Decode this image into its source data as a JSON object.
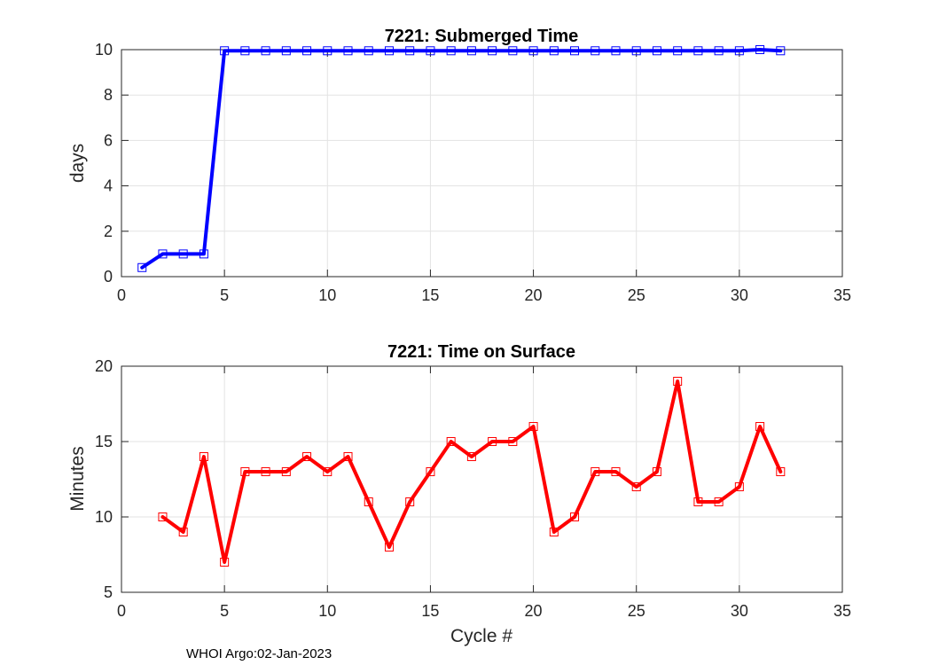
{
  "footer_text": "WHOI Argo:02-Jan-2023",
  "colors": {
    "series_top": "#0000ff",
    "series_bottom": "#ff0000",
    "marker_top": "#0000ff",
    "marker_bottom": "#ff0000"
  },
  "chart_data": [
    {
      "type": "line",
      "title": "7221: Submerged Time",
      "xlabel": "",
      "ylabel": "days",
      "xlim": [
        0,
        35
      ],
      "ylim": [
        0,
        10
      ],
      "xticks": [
        0,
        5,
        10,
        15,
        20,
        25,
        30,
        35
      ],
      "yticks": [
        0,
        2,
        4,
        6,
        8,
        10
      ],
      "grid": true,
      "marker": "square",
      "series": [
        {
          "name": "Submerged Time",
          "x": [
            1,
            2,
            3,
            4,
            5,
            6,
            7,
            8,
            9,
            10,
            11,
            12,
            13,
            14,
            15,
            16,
            17,
            18,
            19,
            20,
            21,
            22,
            23,
            24,
            25,
            26,
            27,
            28,
            29,
            30,
            31,
            32
          ],
          "y": [
            0.4,
            1.0,
            1.0,
            1.0,
            9.95,
            9.95,
            9.95,
            9.95,
            9.95,
            9.95,
            9.95,
            9.95,
            9.95,
            9.95,
            9.95,
            9.95,
            9.95,
            9.95,
            9.95,
            9.95,
            9.95,
            9.95,
            9.95,
            9.95,
            9.95,
            9.95,
            9.95,
            9.95,
            9.95,
            9.95,
            10.0,
            9.95
          ]
        }
      ]
    },
    {
      "type": "line",
      "title": "7221: Time on Surface",
      "xlabel": "Cycle #",
      "ylabel": "Minutes",
      "xlim": [
        0,
        35
      ],
      "ylim": [
        5,
        20
      ],
      "xticks": [
        0,
        5,
        10,
        15,
        20,
        25,
        30,
        35
      ],
      "yticks": [
        5,
        10,
        15,
        20
      ],
      "grid": true,
      "marker": "square",
      "series": [
        {
          "name": "Time on Surface",
          "x": [
            2,
            3,
            4,
            5,
            6,
            7,
            8,
            9,
            10,
            11,
            12,
            13,
            14,
            15,
            16,
            17,
            18,
            19,
            20,
            21,
            22,
            23,
            24,
            25,
            26,
            27,
            28,
            29,
            30,
            31,
            32
          ],
          "y": [
            10,
            9,
            14,
            7,
            13,
            13,
            13,
            14,
            13,
            14,
            11,
            8,
            11,
            13,
            15,
            14,
            15,
            15,
            16,
            9,
            10,
            13,
            13,
            12,
            13,
            19,
            11,
            11,
            12,
            16,
            13
          ]
        }
      ]
    }
  ]
}
